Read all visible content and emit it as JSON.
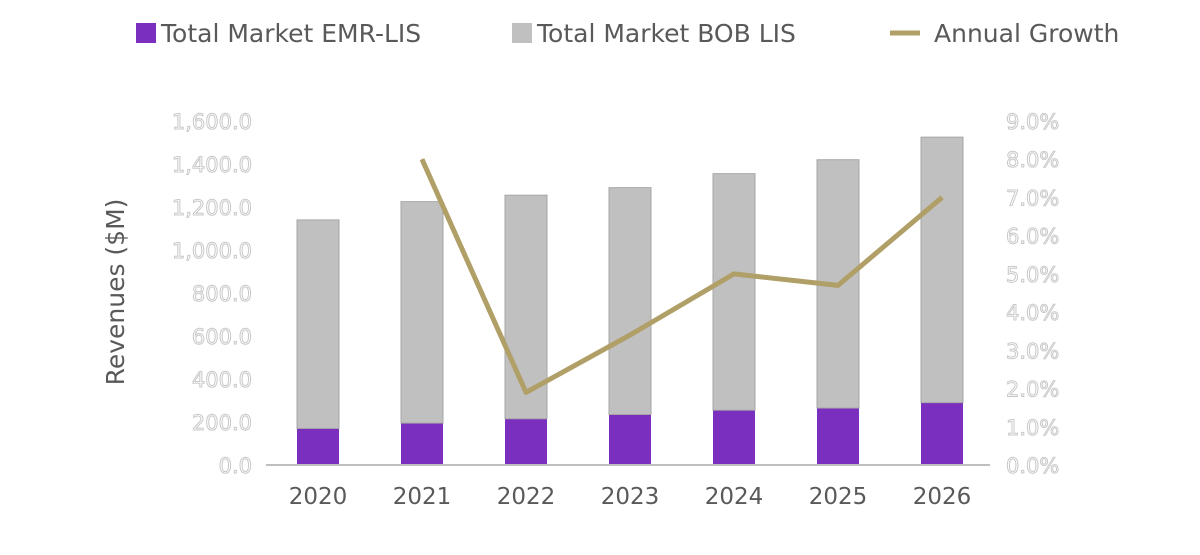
{
  "chart_data": {
    "type": "bar",
    "stacked": true,
    "categories": [
      "2020",
      "2021",
      "2022",
      "2023",
      "2024",
      "2025",
      "2026"
    ],
    "series": [
      {
        "name": "Total Market EMR-LIS",
        "kind": "bar",
        "axis": "left",
        "color": "#7b2fbe",
        "values": [
          170,
          195,
          215,
          235,
          255,
          265,
          290
        ]
      },
      {
        "name": "Total Market BOB LIS",
        "kind": "bar",
        "axis": "left",
        "color": "#c0c0c0",
        "values": [
          970,
          1030,
          1040,
          1055,
          1100,
          1155,
          1235
        ]
      },
      {
        "name": "Annual Growth",
        "kind": "line",
        "axis": "right",
        "color": "#b09f66",
        "values": [
          null,
          8.0,
          1.9,
          3.4,
          5.0,
          4.7,
          7.0
        ]
      }
    ],
    "ylabel": "Revenues ($M)",
    "ylim": [
      0,
      1600
    ],
    "y2lim": [
      0,
      9
    ],
    "yticks": [
      "0.0",
      "200.0",
      "400.0",
      "600.0",
      "800.0",
      "1,000.0",
      "1,200.0",
      "1,400.0",
      "1,600.0"
    ],
    "y2ticks": [
      "0.0%",
      "1.0%",
      "2.0%",
      "3.0%",
      "4.0%",
      "5.0%",
      "6.0%",
      "7.0%",
      "8.0%",
      "9.0%"
    ],
    "legend_position": "top",
    "grid": false
  }
}
